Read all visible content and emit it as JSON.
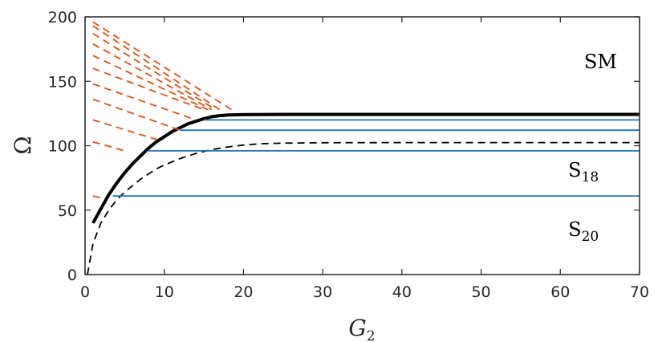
{
  "chart_data": {
    "type": "line",
    "xlabel": "G",
    "xlabel_subscript": "2",
    "ylabel": "Ω",
    "xlim": [
      0,
      70
    ],
    "ylim": [
      0,
      200
    ],
    "xticks": [
      "0",
      "10",
      "20",
      "30",
      "40",
      "50",
      "60",
      "70"
    ],
    "yticks": [
      "0",
      "50",
      "100",
      "150",
      "200"
    ],
    "grid": false,
    "annotations": [
      {
        "text": "SM",
        "sub": "",
        "x": 63,
        "y": 160
      },
      {
        "text": "S",
        "sub": "18",
        "x": 61,
        "y": 76
      },
      {
        "text": "S",
        "sub": "20",
        "x": 61,
        "y": 30
      }
    ],
    "series": [
      {
        "style": "solid-thick",
        "color": "#000000",
        "x": [
          1,
          2,
          3,
          4,
          5,
          6,
          7,
          8,
          9,
          10,
          11,
          12,
          13,
          14,
          15,
          16,
          17,
          18,
          19,
          20,
          25,
          30,
          40,
          50,
          60,
          70
        ],
        "y": [
          40,
          51,
          62,
          71,
          79,
          86,
          92,
          98,
          103,
          107,
          111,
          114,
          117,
          119,
          121,
          122.5,
          123.3,
          123.8,
          124,
          124.2,
          124.3,
          124.3,
          124.3,
          124.3,
          124.3,
          124.3
        ]
      },
      {
        "style": "dashed",
        "color": "#000000",
        "x": [
          0.3,
          1,
          2,
          3,
          4,
          5,
          6,
          7,
          8,
          9,
          10,
          12,
          14,
          16,
          18,
          20,
          22,
          25,
          30,
          40,
          50,
          60,
          70
        ],
        "y": [
          0,
          24,
          40,
          50,
          58,
          64,
          69,
          74,
          78,
          82,
          85,
          90,
          94,
          97,
          99,
          100.5,
          101.5,
          102,
          102.3,
          102.4,
          102.4,
          102.4,
          102.4
        ]
      },
      {
        "style": "solid",
        "color": "#2372b8",
        "x": [
          15,
          70
        ],
        "y": [
          120,
          120
        ]
      },
      {
        "style": "solid",
        "color": "#2372b8",
        "x": [
          12,
          70
        ],
        "y": [
          112,
          112
        ]
      },
      {
        "style": "solid",
        "color": "#2372b8",
        "x": [
          8,
          70
        ],
        "y": [
          96,
          96
        ]
      },
      {
        "style": "solid",
        "color": "#2372b8",
        "x": [
          3.5,
          70
        ],
        "y": [
          61,
          61
        ]
      },
      {
        "style": "dashed",
        "color": "#d95319",
        "x": [
          1,
          18.5
        ],
        "y": [
          196,
          128
        ]
      },
      {
        "style": "dashed",
        "color": "#d95319",
        "x": [
          1,
          17
        ],
        "y": [
          193,
          128
        ]
      },
      {
        "style": "dashed",
        "color": "#d95319",
        "x": [
          1,
          16.5
        ],
        "y": [
          187,
          128
        ]
      },
      {
        "style": "dashed",
        "color": "#d95319",
        "x": [
          1,
          16
        ],
        "y": [
          179,
          128
        ]
      },
      {
        "style": "dashed",
        "color": "#d95319",
        "x": [
          1,
          15.5
        ],
        "y": [
          170,
          128
        ]
      },
      {
        "style": "dashed",
        "color": "#d95319",
        "x": [
          1,
          15
        ],
        "y": [
          160,
          128
        ]
      },
      {
        "style": "dashed",
        "color": "#d95319",
        "x": [
          1,
          14
        ],
        "y": [
          148,
          120
        ]
      },
      {
        "style": "dashed",
        "color": "#d95319",
        "x": [
          1,
          12
        ],
        "y": [
          136,
          112
        ]
      },
      {
        "style": "dashed",
        "color": "#d95319",
        "x": [
          1,
          9.5
        ],
        "y": [
          120,
          104
        ]
      },
      {
        "style": "dashed",
        "color": "#d95319",
        "x": [
          1,
          5
        ],
        "y": [
          103,
          96
        ]
      },
      {
        "style": "dashed",
        "color": "#d95319",
        "x": [
          1,
          2.5
        ],
        "y": [
          61,
          59
        ]
      }
    ]
  }
}
